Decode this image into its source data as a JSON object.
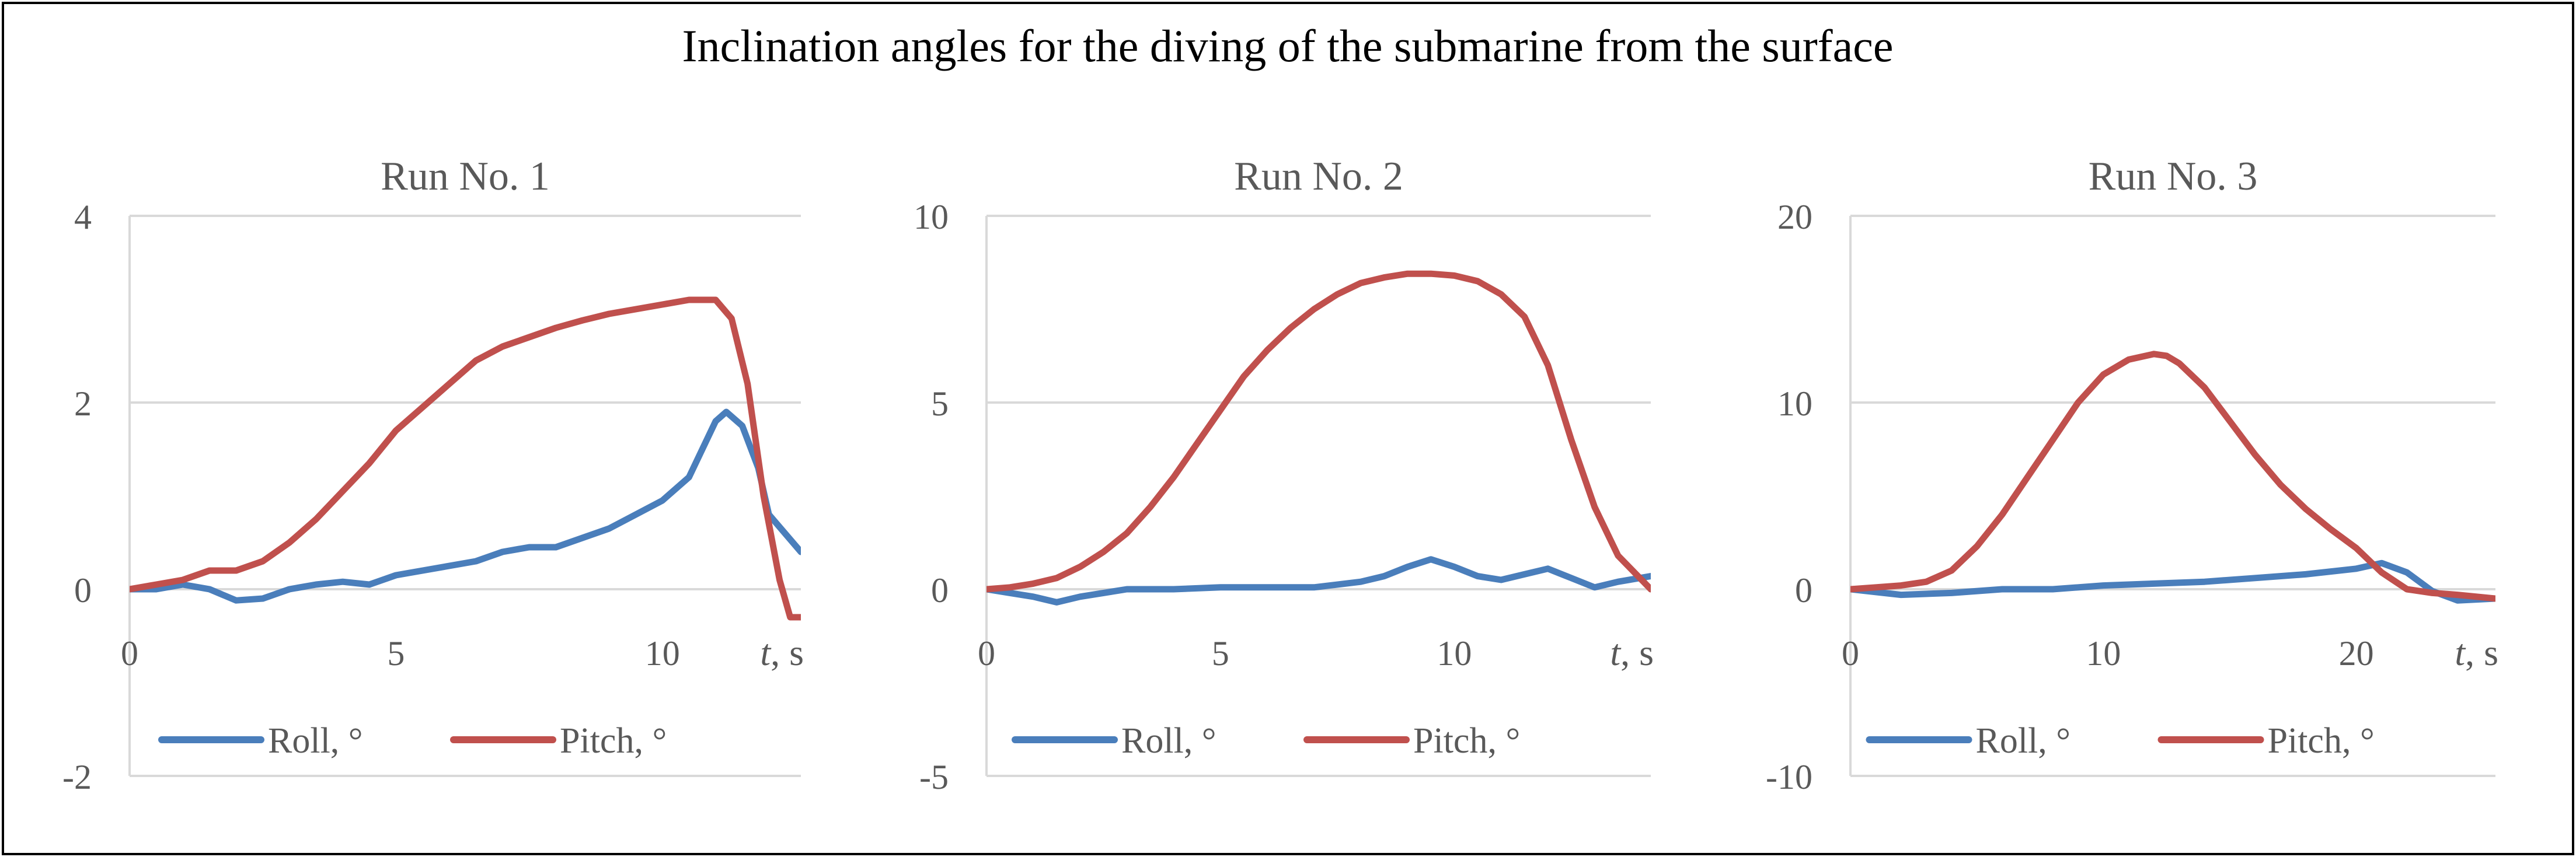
{
  "figure": {
    "title": "Inclination angles for the diving of the submarine from the surface"
  },
  "colors": {
    "roll": "#4a7ebb",
    "pitch": "#c0504d",
    "grid": "#d9d9d9",
    "axis_text": "#595959",
    "border": "#000000"
  },
  "chart_data": [
    {
      "type": "line",
      "title": "Run No. 1",
      "xlabel_italic": "t",
      "xlabel_unit": ", s",
      "xlim": [
        0,
        12.6
      ],
      "ylim": [
        -2,
        4
      ],
      "x_ticks": [
        0,
        5,
        10
      ],
      "x_tick_labels": [
        "0",
        "5",
        "10"
      ],
      "y_ticks": [
        -2,
        0,
        2,
        4
      ],
      "y_tick_labels": [
        "-2",
        "0",
        "2",
        "4"
      ],
      "legend": [
        "Roll, °",
        "Pitch, °"
      ],
      "series": [
        {
          "name": "Roll, °",
          "x": [
            0,
            0.5,
            1,
            1.5,
            2,
            2.5,
            3,
            3.5,
            4,
            4.5,
            5,
            5.5,
            6,
            6.5,
            7,
            7.5,
            8,
            8.5,
            9,
            9.5,
            10,
            10.5,
            11,
            11.2,
            11.5,
            11.8,
            12,
            12.3,
            12.6
          ],
          "y": [
            0,
            0,
            0.05,
            0,
            -0.12,
            -0.1,
            0,
            0.05,
            0.08,
            0.05,
            0.15,
            0.2,
            0.25,
            0.3,
            0.4,
            0.45,
            0.45,
            0.55,
            0.65,
            0.8,
            0.95,
            1.2,
            1.8,
            1.9,
            1.75,
            1.3,
            0.8,
            0.6,
            0.4
          ]
        },
        {
          "name": "Pitch, °",
          "x": [
            0,
            0.5,
            1,
            1.5,
            2,
            2.5,
            3,
            3.5,
            4,
            4.5,
            5,
            5.5,
            6,
            6.5,
            7,
            7.5,
            8,
            8.5,
            9,
            9.5,
            10,
            10.5,
            11,
            11.3,
            11.6,
            11.9,
            12.2,
            12.4,
            12.6
          ],
          "y": [
            0,
            0.05,
            0.1,
            0.2,
            0.2,
            0.3,
            0.5,
            0.75,
            1.05,
            1.35,
            1.7,
            1.95,
            2.2,
            2.45,
            2.6,
            2.7,
            2.8,
            2.88,
            2.95,
            3.0,
            3.05,
            3.1,
            3.1,
            2.9,
            2.2,
            1.0,
            0.1,
            -0.3,
            -0.3
          ]
        }
      ]
    },
    {
      "type": "line",
      "title": "Run No. 2",
      "xlabel_italic": "t",
      "xlabel_unit": ", s",
      "xlim": [
        0,
        14.2
      ],
      "ylim": [
        -5,
        10
      ],
      "x_ticks": [
        0,
        5,
        10
      ],
      "x_tick_labels": [
        "0",
        "5",
        "10"
      ],
      "y_ticks": [
        -5,
        0,
        5,
        10
      ],
      "y_tick_labels": [
        "-5",
        "0",
        "5",
        "10"
      ],
      "legend": [
        "Roll, °",
        "Pitch, °"
      ],
      "series": [
        {
          "name": "Roll, °",
          "x": [
            0,
            0.5,
            1,
            1.5,
            2,
            2.5,
            3,
            4,
            5,
            6,
            7,
            8,
            8.5,
            9,
            9.5,
            10,
            10.5,
            11,
            11.5,
            12,
            12.5,
            13,
            13.5,
            14.2
          ],
          "y": [
            0,
            -0.1,
            -0.2,
            -0.35,
            -0.2,
            -0.1,
            0,
            0,
            0.05,
            0.05,
            0.05,
            0.2,
            0.35,
            0.6,
            0.8,
            0.6,
            0.35,
            0.25,
            0.4,
            0.55,
            0.3,
            0.05,
            0.2,
            0.35
          ]
        },
        {
          "name": "Pitch, °",
          "x": [
            0,
            0.5,
            1,
            1.5,
            2,
            2.5,
            3,
            3.5,
            4,
            4.5,
            5,
            5.5,
            6,
            6.5,
            7,
            7.5,
            8,
            8.5,
            9,
            9.5,
            10,
            10.5,
            11,
            11.5,
            12,
            12.5,
            13,
            13.5,
            14.2
          ],
          "y": [
            0,
            0.05,
            0.15,
            0.3,
            0.6,
            1.0,
            1.5,
            2.2,
            3.0,
            3.9,
            4.8,
            5.7,
            6.4,
            7.0,
            7.5,
            7.9,
            8.2,
            8.35,
            8.45,
            8.45,
            8.4,
            8.25,
            7.9,
            7.3,
            6.0,
            4.0,
            2.2,
            0.9,
            0
          ]
        }
      ]
    },
    {
      "type": "line",
      "title": "Run No. 3",
      "xlabel_italic": "t",
      "xlabel_unit": ", s",
      "xlim": [
        0,
        25.5
      ],
      "ylim": [
        -10,
        20
      ],
      "x_ticks": [
        0,
        10,
        20
      ],
      "x_tick_labels": [
        "0",
        "10",
        "20"
      ],
      "y_ticks": [
        -10,
        0,
        10,
        20
      ],
      "y_tick_labels": [
        "-10",
        "0",
        "10",
        "20"
      ],
      "legend": [
        "Roll, °",
        "Pitch, °"
      ],
      "series": [
        {
          "name": "Roll, °",
          "x": [
            0,
            2,
            4,
            6,
            8,
            10,
            12,
            14,
            16,
            18,
            20,
            21,
            22,
            23,
            24,
            25.5
          ],
          "y": [
            0,
            -0.3,
            -0.2,
            0,
            0,
            0.2,
            0.3,
            0.4,
            0.6,
            0.8,
            1.1,
            1.4,
            0.9,
            -0.1,
            -0.6,
            -0.5
          ]
        },
        {
          "name": "Pitch, °",
          "x": [
            0,
            1,
            2,
            3,
            4,
            5,
            6,
            7,
            8,
            9,
            10,
            11,
            12,
            12.5,
            13,
            14,
            15,
            16,
            17,
            18,
            19,
            20,
            21,
            22,
            23,
            24,
            25.5
          ],
          "y": [
            0,
            0.1,
            0.2,
            0.4,
            1.0,
            2.3,
            4.0,
            6.0,
            8.0,
            10.0,
            11.5,
            12.3,
            12.6,
            12.5,
            12.1,
            10.8,
            9.0,
            7.2,
            5.6,
            4.3,
            3.2,
            2.2,
            0.9,
            0,
            -0.2,
            -0.3,
            -0.5
          ]
        }
      ]
    }
  ]
}
